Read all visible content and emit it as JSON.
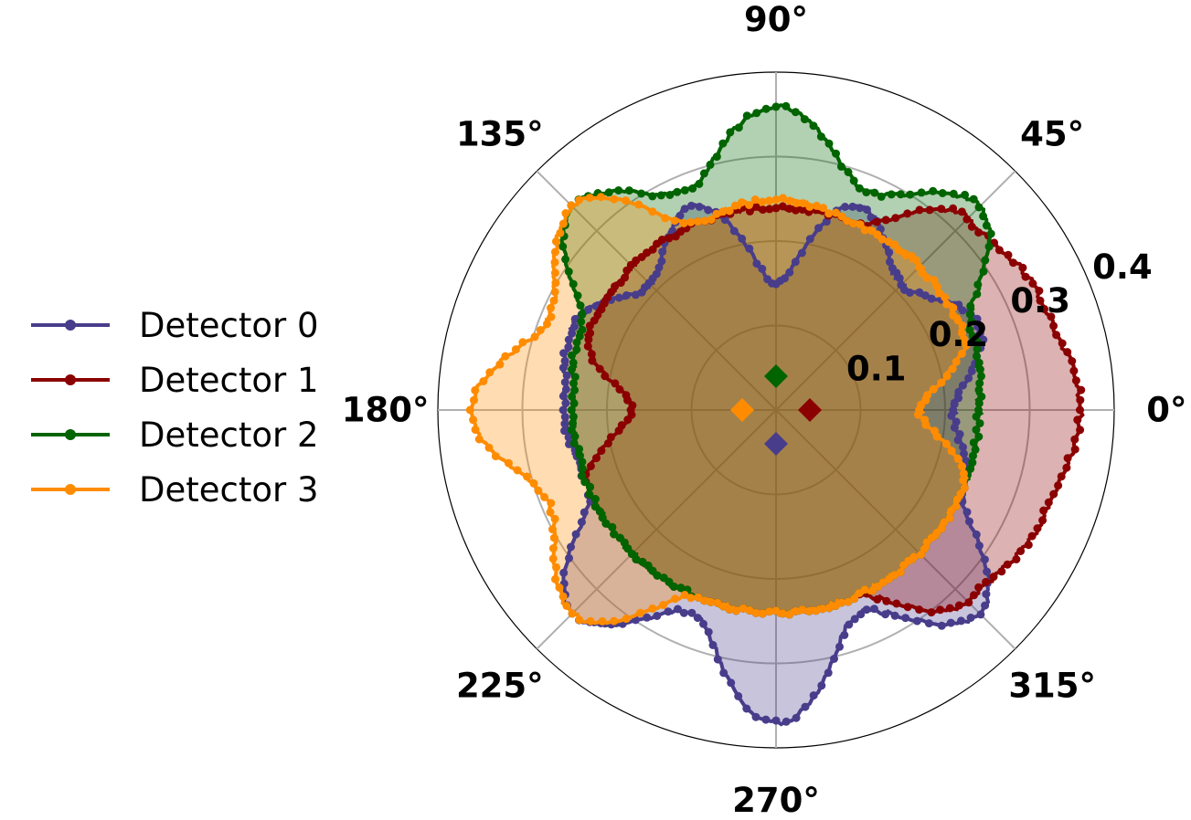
{
  "chart_data": {
    "type": "polar",
    "title": "",
    "angle_unit": "degrees",
    "angular_ticks": [
      "0°",
      "45°",
      "90°",
      "135°",
      "180°",
      "225°",
      "270°",
      "315°"
    ],
    "angular_tick_values": [
      0,
      45,
      90,
      135,
      180,
      225,
      270,
      315
    ],
    "radial_ticks": [
      "0.1",
      "0.2",
      "0.3",
      "0.4"
    ],
    "radial_tick_values": [
      0.1,
      0.2,
      0.3,
      0.4
    ],
    "rlim": [
      0,
      0.4
    ],
    "grid": true,
    "legend_position": "left",
    "series": [
      {
        "name": "Detector 0",
        "color": "#483D8B",
        "fill_opacity": 0.3,
        "angles": [
          0,
          22.5,
          45,
          67.5,
          90,
          112.5,
          135,
          157.5,
          180,
          202.5,
          225,
          247.5,
          270,
          292.5,
          315,
          337.5
        ],
        "radii": [
          0.21,
          0.26,
          0.21,
          0.26,
          0.15,
          0.26,
          0.21,
          0.26,
          0.25,
          0.24,
          0.34,
          0.26,
          0.37,
          0.26,
          0.34,
          0.24
        ],
        "marker": {
          "angle": 270,
          "r": 0.04
        }
      },
      {
        "name": "Detector 1",
        "color": "#8B0000",
        "fill_opacity": 0.3,
        "angles": [
          0,
          22.5,
          45,
          67.5,
          90,
          112.5,
          135,
          157.5,
          180,
          202.5,
          225,
          247.5,
          270,
          292.5,
          315,
          337.5
        ],
        "radii": [
          0.36,
          0.34,
          0.32,
          0.24,
          0.24,
          0.24,
          0.24,
          0.24,
          0.17,
          0.24,
          0.24,
          0.24,
          0.24,
          0.24,
          0.32,
          0.34
        ],
        "marker": {
          "angle": 0,
          "r": 0.04
        }
      },
      {
        "name": "Detector 2",
        "color": "#006400",
        "fill_opacity": 0.3,
        "angles": [
          0,
          22.5,
          45,
          67.5,
          90,
          112.5,
          135,
          157.5,
          180,
          202.5,
          225,
          247.5,
          270,
          292.5,
          315,
          337.5
        ],
        "radii": [
          0.24,
          0.25,
          0.34,
          0.28,
          0.36,
          0.28,
          0.34,
          0.25,
          0.24,
          0.24,
          0.24,
          0.24,
          0.24,
          0.24,
          0.24,
          0.24
        ],
        "marker": {
          "angle": 90,
          "r": 0.04
        }
      },
      {
        "name": "Detector 3",
        "color": "#FF8C00",
        "fill_opacity": 0.3,
        "angles": [
          0,
          22.5,
          45,
          67.5,
          90,
          112.5,
          135,
          157.5,
          180,
          202.5,
          225,
          247.5,
          270,
          292.5,
          315,
          337.5
        ],
        "radii": [
          0.17,
          0.24,
          0.24,
          0.24,
          0.25,
          0.24,
          0.34,
          0.29,
          0.36,
          0.29,
          0.34,
          0.24,
          0.24,
          0.24,
          0.24,
          0.24
        ],
        "marker": {
          "angle": 180,
          "r": 0.04
        }
      }
    ]
  }
}
